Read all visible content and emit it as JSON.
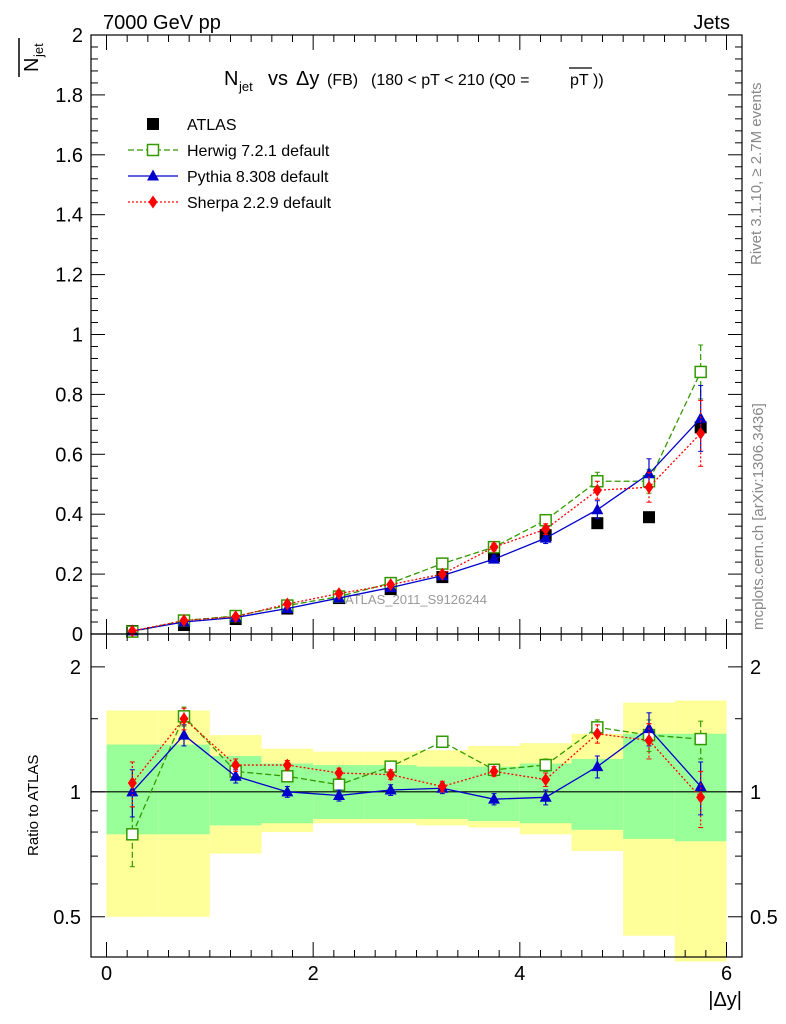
{
  "header": {
    "left": "7000 GeV pp",
    "right": "Jets"
  },
  "side_labels": {
    "rivet": "Rivet 3.1.10, ≥ 2.7M events",
    "mcplots": "mcplots.cern.ch [arXiv:1306.3436]"
  },
  "watermark": "ATLAS_2011_S9126244",
  "chart_data": [
    {
      "type": "scatter",
      "title_parts": {
        "main": "N",
        "sub": "jet",
        "vs": "vs",
        "dy": "Δy",
        "tag": "(FB)",
        "range": "(180 < pT < 210 (Q0 =",
        "pt": "pT",
        "close": "))"
      },
      "ylabel": {
        "main": "N",
        "sub": "jet"
      },
      "xlim": [
        -0.15,
        6.15
      ],
      "ylim": [
        0,
        2
      ],
      "y_ticks": [
        0,
        0.2,
        0.4,
        0.6,
        0.8,
        1,
        1.2,
        1.4,
        1.6,
        1.8,
        2
      ],
      "y_tick_labels": [
        "0",
        "0.2",
        "0.4",
        "0.6",
        "0.8",
        "1",
        "1.2",
        "1.4",
        "1.6",
        "1.8",
        "2"
      ],
      "grid": false,
      "legend_position": "top-left",
      "x": [
        0.25,
        0.75,
        1.25,
        1.75,
        2.25,
        2.75,
        3.25,
        3.75,
        4.25,
        4.75,
        5.25,
        5.75
      ],
      "series": [
        {
          "name": "ATLAS",
          "color": "#000000",
          "marker": "square-filled",
          "line": "none",
          "values": [
            0.01,
            0.03,
            0.05,
            0.085,
            0.12,
            0.15,
            0.19,
            0.26,
            0.33,
            0.37,
            0.39,
            0.69
          ]
        },
        {
          "name": "Herwig 7.2.1 default",
          "color": "#339900",
          "marker": "square-open",
          "line": "dashed",
          "values": [
            0.008,
            0.045,
            0.06,
            0.095,
            0.125,
            0.17,
            0.235,
            0.29,
            0.38,
            0.51,
            0.51,
            0.875
          ],
          "errors": [
            0.001,
            0.003,
            0.003,
            0.004,
            0.005,
            0.007,
            0.009,
            0.012,
            0.018,
            0.03,
            0.04,
            0.09
          ]
        },
        {
          "name": "Pythia 8.308 default",
          "color": "#0000cc",
          "marker": "triangle-filled",
          "line": "solid",
          "values": [
            0.01,
            0.04,
            0.055,
            0.085,
            0.12,
            0.155,
            0.195,
            0.25,
            0.32,
            0.415,
            0.535,
            0.72
          ],
          "errors": [
            0.001,
            0.003,
            0.003,
            0.004,
            0.005,
            0.007,
            0.009,
            0.012,
            0.018,
            0.03,
            0.05,
            0.11
          ]
        },
        {
          "name": "Sherpa 2.2.9 default",
          "color": "#ff0000",
          "marker": "diamond-filled",
          "line": "dotted",
          "values": [
            0.01,
            0.045,
            0.058,
            0.1,
            0.135,
            0.165,
            0.2,
            0.29,
            0.35,
            0.48,
            0.49,
            0.67
          ],
          "errors": [
            0.001,
            0.003,
            0.003,
            0.004,
            0.005,
            0.007,
            0.009,
            0.012,
            0.018,
            0.03,
            0.05,
            0.11
          ]
        }
      ]
    },
    {
      "type": "scatter",
      "ylabel": "Ratio to ATLAS",
      "xlabel": "|Δy|",
      "xlim": [
        -0.15,
        6.15
      ],
      "ylim": [
        0.4,
        2.4
      ],
      "y_scale": "log",
      "y_ticks": [
        0.5,
        1,
        2
      ],
      "y_tick_labels": [
        "0.5",
        "1",
        "2"
      ],
      "x_ticks": [
        0,
        2,
        4,
        6
      ],
      "x_tick_labels": [
        "0",
        "2",
        "4",
        "6"
      ],
      "reference_line": 1,
      "bands": {
        "x_edges": [
          0,
          0.5,
          1,
          1.5,
          2,
          2.5,
          3,
          3.5,
          4,
          4.5,
          5,
          5.5,
          6
        ],
        "inner_color": "#99ff99",
        "outer_color": "#ffff99",
        "inner_low": [
          0.79,
          0.79,
          0.83,
          0.84,
          0.86,
          0.86,
          0.86,
          0.85,
          0.84,
          0.81,
          0.77,
          0.76
        ],
        "inner_high": [
          1.3,
          1.3,
          1.22,
          1.17,
          1.16,
          1.16,
          1.15,
          1.15,
          1.17,
          1.2,
          1.38,
          1.38
        ],
        "outer_low": [
          0.5,
          0.5,
          0.71,
          0.8,
          0.84,
          0.84,
          0.83,
          0.82,
          0.79,
          0.72,
          0.45,
          0.39
        ],
        "outer_high": [
          1.57,
          1.57,
          1.37,
          1.27,
          1.25,
          1.25,
          1.26,
          1.29,
          1.31,
          1.38,
          1.64,
          1.66
        ]
      },
      "x": [
        0.25,
        0.75,
        1.25,
        1.75,
        2.25,
        2.75,
        3.25,
        3.75,
        4.25,
        4.75,
        5.25,
        5.75
      ],
      "series": [
        {
          "name": "Herwig 7.2.1 default",
          "color": "#339900",
          "marker": "square-open",
          "line": "dashed",
          "values": [
            0.79,
            1.52,
            1.12,
            1.09,
            1.04,
            1.15,
            1.32,
            1.13,
            1.16,
            1.43,
            1.37,
            1.34
          ],
          "errors": [
            0.13,
            0.08,
            0.04,
            0.03,
            0.03,
            0.03,
            0.03,
            0.03,
            0.04,
            0.06,
            0.12,
            0.14
          ]
        },
        {
          "name": "Pythia 8.308 default",
          "color": "#0000cc",
          "marker": "triangle-filled",
          "line": "solid",
          "values": [
            1.0,
            1.37,
            1.09,
            1.0,
            0.98,
            1.01,
            1.02,
            0.96,
            0.97,
            1.15,
            1.42,
            1.03
          ],
          "errors": [
            0.13,
            0.08,
            0.04,
            0.03,
            0.03,
            0.03,
            0.03,
            0.03,
            0.04,
            0.07,
            0.13,
            0.15
          ]
        },
        {
          "name": "Sherpa 2.2.9 default",
          "color": "#ff0000",
          "marker": "diamond-filled",
          "line": "dotted",
          "values": [
            1.05,
            1.5,
            1.16,
            1.16,
            1.11,
            1.1,
            1.03,
            1.12,
            1.07,
            1.38,
            1.33,
            0.97
          ],
          "errors": [
            0.13,
            0.09,
            0.04,
            0.03,
            0.03,
            0.03,
            0.03,
            0.03,
            0.04,
            0.07,
            0.13,
            0.15
          ]
        }
      ]
    }
  ]
}
